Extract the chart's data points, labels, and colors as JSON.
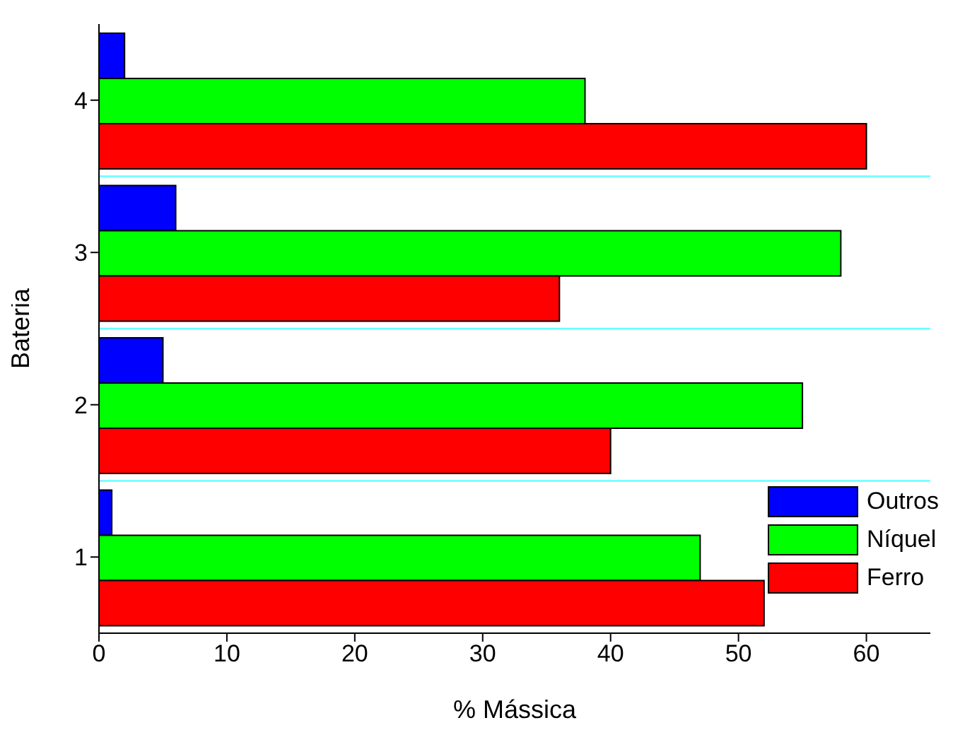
{
  "chart_data": {
    "type": "bar",
    "orientation": "horizontal",
    "xlabel": "% Mássica",
    "ylabel": "Bateria",
    "categories": [
      "4",
      "3",
      "2",
      "1"
    ],
    "series": [
      {
        "name": "Outros",
        "color": "#0000ff",
        "values": [
          2,
          6,
          5,
          1
        ]
      },
      {
        "name": "Níquel",
        "color": "#00ff00",
        "values": [
          38,
          58,
          55,
          47
        ]
      },
      {
        "name": "Ferro",
        "color": "#ff0000",
        "values": [
          60,
          36,
          40,
          52
        ]
      }
    ],
    "xlim": [
      0,
      65
    ],
    "xticks": [
      0,
      10,
      20,
      30,
      40,
      50,
      60
    ],
    "grid": "y",
    "legend": "bottom right"
  }
}
